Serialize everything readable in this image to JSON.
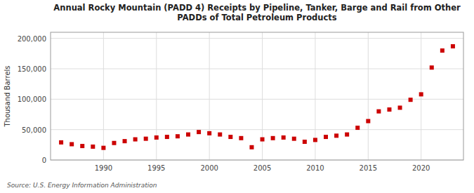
{
  "chart_data": {
    "type": "scatter",
    "title": "Annual Rocky Mountain (PADD 4) Receipts by Pipeline, Tanker, Barge and Rail from Other\nPADDs of Total Petroleum Products",
    "y_label": "Thousand Barrels",
    "annotations": [
      "Source: U.S. Energy Information Administration"
    ],
    "x": [
      1986,
      1987,
      1988,
      1989,
      1990,
      1991,
      1992,
      1993,
      1994,
      1995,
      1996,
      1997,
      1998,
      1999,
      2000,
      2001,
      2002,
      2003,
      2004,
      2005,
      2006,
      2007,
      2008,
      2009,
      2010,
      2011,
      2012,
      2013,
      2014,
      2015,
      2016,
      2017,
      2018,
      2019,
      2020,
      2021,
      2022,
      2023
    ],
    "values": [
      29000,
      26000,
      23000,
      22000,
      20000,
      28000,
      31000,
      34000,
      35000,
      37000,
      38000,
      39000,
      42000,
      46000,
      44000,
      42000,
      38000,
      36000,
      21000,
      34000,
      36000,
      37000,
      35000,
      30000,
      33000,
      38000,
      40000,
      42000,
      53000,
      64000,
      80000,
      83000,
      86000,
      99000,
      108000,
      152000,
      180000,
      187000
    ],
    "color": "#cc0000",
    "marker": "square",
    "xlim": [
      1985,
      2024
    ],
    "ylim": [
      0,
      210000
    ],
    "xticks": [
      1990,
      1995,
      2000,
      2005,
      2010,
      2015,
      2020
    ],
    "yticks": [
      0,
      {
        "value": 50000,
        "label": "50,000"
      },
      {
        "value": 100000,
        "label": "100,000"
      },
      {
        "value": 150000,
        "label": "150,000"
      },
      {
        "value": 200000,
        "label": "200,000"
      }
    ],
    "grid": true
  }
}
